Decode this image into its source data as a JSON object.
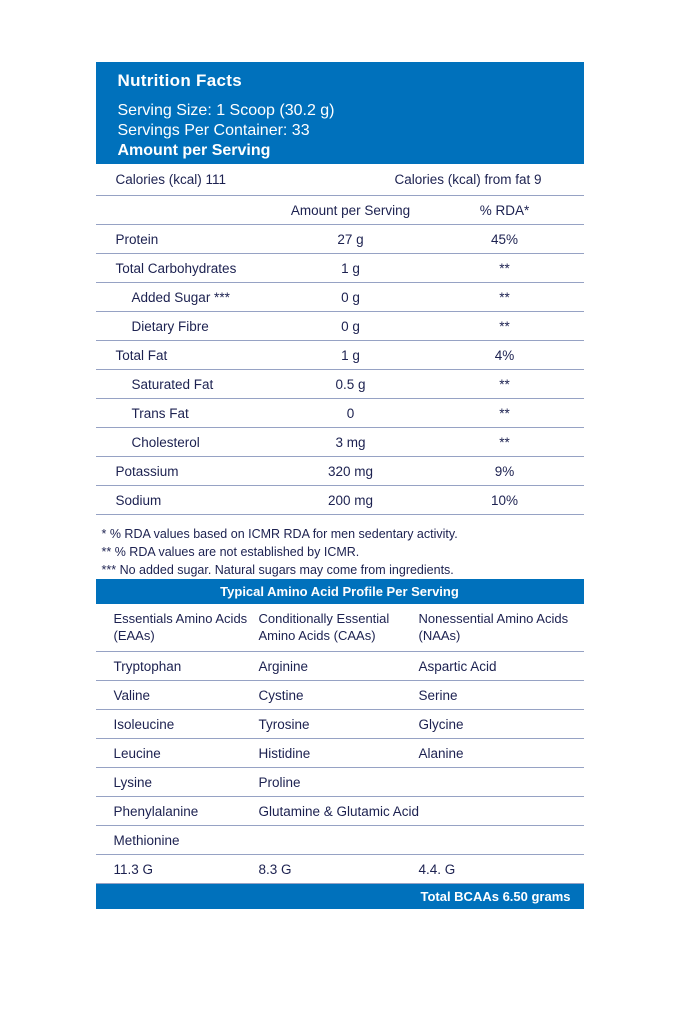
{
  "colors": {
    "accent_blue": "#0071BC",
    "text_navy": "#1C2150",
    "divider_line": "#96A2C4"
  },
  "header": {
    "title": "Nutrition Facts",
    "serving_size": "Serving Size: 1 Scoop (30.2 g)",
    "servings_per_container": "Servings Per Container: 33",
    "amount_per_serving": "Amount per Serving"
  },
  "calories": {
    "left": "Calories (kcal) 111",
    "right": "Calories (kcal) from fat 9"
  },
  "nutrition_table": {
    "headers": {
      "amount": "Amount per Serving",
      "rda": "% RDA*"
    },
    "rows": [
      {
        "label": "Protein",
        "amount": "27 g",
        "rda": "45%"
      },
      {
        "label": "Total Carbohydrates",
        "amount": "1 g",
        "rda": "**"
      },
      {
        "label": "Added Sugar ***",
        "amount": "0 g",
        "rda": "**"
      },
      {
        "label": "Dietary Fibre",
        "amount": "0 g",
        "rda": "**"
      },
      {
        "label": "Total Fat",
        "amount": "1 g",
        "rda": "4%"
      },
      {
        "label": "Saturated Fat",
        "amount": "0.5 g",
        "rda": "**"
      },
      {
        "label": "Trans Fat",
        "amount": "0",
        "rda": "**"
      },
      {
        "label": "Cholesterol",
        "amount": "3 mg",
        "rda": "**"
      },
      {
        "label": "Potassium",
        "amount": "320 mg",
        "rda": "9%"
      },
      {
        "label": "Sodium",
        "amount": "200 mg",
        "rda": "10%"
      }
    ]
  },
  "footnotes": {
    "line1": "* % RDA values based on ICMR RDA for men sedentary activity.",
    "line2": "** % RDA values are not established by ICMR.",
    "line3": "*** No added sugar. Natural sugars may come from ingredients."
  },
  "amino": {
    "title": "Typical Amino Acid Profile Per Serving",
    "headers": {
      "col1": "Essentials Amino Acids (EAAs)",
      "col2": "Conditionally Essential Amino Acids (CAAs)",
      "col3": "Nonessential Amino Acids (NAAs)"
    },
    "rows": [
      {
        "c1": "Tryptophan",
        "c2": "Arginine",
        "c3": "Aspartic Acid"
      },
      {
        "c1": "Valine",
        "c2": "Cystine",
        "c3": "Serine"
      },
      {
        "c1": "Isoleucine",
        "c2": "Tyrosine",
        "c3": "Glycine"
      },
      {
        "c1": "Leucine",
        "c2": "Histidine",
        "c3": "Alanine"
      },
      {
        "c1": "Lysine",
        "c2": "Proline",
        "c3": ""
      },
      {
        "c1": "Phenylalanine",
        "c2": "Glutamine & Glutamic Acid",
        "c3": ""
      },
      {
        "c1": "Methionine",
        "c2": "",
        "c3": ""
      },
      {
        "c1": "11.3 G",
        "c2": "8.3 G",
        "c3": "4.4. G"
      }
    ],
    "footer": "Total BCAAs 6.50 grams"
  }
}
